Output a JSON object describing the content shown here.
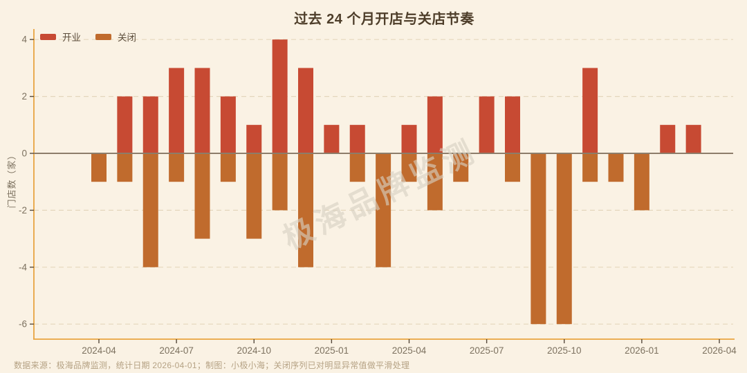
{
  "page": {
    "title": "过去 24 个月开店与关店节奏",
    "watermark": "极海品牌监测",
    "footer": "数据来源：极海品牌监测，统计日期 2026-04-01；制图：小极小海；关闭序列已对明显异常值做平滑处理"
  },
  "chart_data": {
    "type": "bar",
    "title": "过去 24 个月开店与关店节奏",
    "ylabel": "门店数（家）",
    "xlabel": "",
    "categories": [
      "2024-04",
      "2024-05",
      "2024-06",
      "2024-07",
      "2024-08",
      "2024-09",
      "2024-10",
      "2024-11",
      "2024-12",
      "2025-01",
      "2025-02",
      "2025-03",
      "2025-04",
      "2025-05",
      "2025-06",
      "2025-07",
      "2025-08",
      "2025-09",
      "2025-10",
      "2025-11",
      "2025-12",
      "2026-01",
      "2026-02",
      "2026-03"
    ],
    "series": [
      {
        "name": "开业",
        "color": "#c74a33",
        "values": [
          0,
          2,
          2,
          3,
          3,
          2,
          1,
          4,
          3,
          1,
          1,
          0,
          1,
          2,
          0,
          2,
          2,
          0,
          0,
          3,
          0,
          0,
          1,
          1
        ]
      },
      {
        "name": "关闭",
        "color": "#c06b2d",
        "values": [
          -1,
          -1,
          -4,
          -1,
          -3,
          -1,
          -3,
          -2,
          -4,
          0,
          -1,
          -4,
          -1,
          -2,
          -1,
          0,
          -1,
          -6,
          -6,
          -1,
          -1,
          -2,
          0,
          0
        ]
      }
    ],
    "yticks": [
      4,
      2,
      0,
      -2,
      -4,
      -6
    ],
    "ylim": [
      -6.5,
      4.4
    ],
    "xtick_labels": [
      "2024-04",
      "2024-07",
      "2024-10",
      "2025-01",
      "2025-04",
      "2025-07",
      "2025-10",
      "2026-01",
      "2026-04"
    ],
    "grid": "horizontal-dashed",
    "legend_position": "top-left"
  }
}
